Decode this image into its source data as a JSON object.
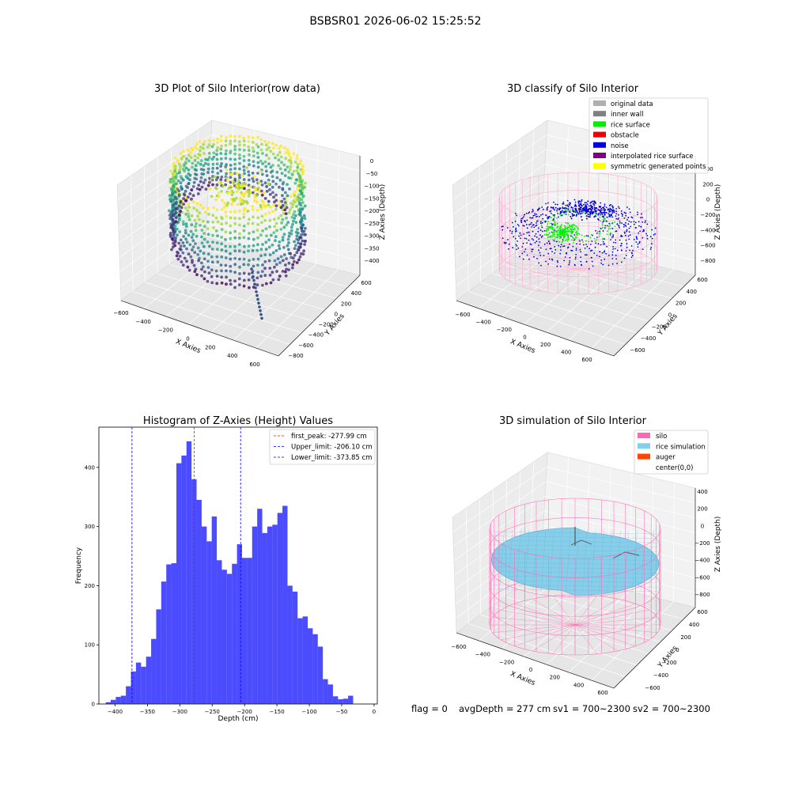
{
  "suptitle": "BSBSR01 2026-06-02 15:25:52",
  "panels": {
    "raw": {
      "title": "3D Plot of Silo Interior(row data)",
      "xlabel": "X Axies",
      "ylabel": "Y Axies",
      "zlabel": "Z Axies (Depth)",
      "xticks": [
        "−600",
        "−400",
        "−200",
        "0",
        "200",
        "400",
        "600"
      ],
      "yticks": [
        "−800",
        "−600",
        "−400",
        "−200",
        "0",
        "200",
        "400",
        "600"
      ],
      "zticks": [
        "0",
        "−50",
        "−100",
        "−150",
        "−200",
        "−250",
        "−300",
        "−350",
        "−400"
      ]
    },
    "classify": {
      "title": "3D classify of Silo Interior",
      "xlabel": "X Axies",
      "ylabel": "Y Axies",
      "zlabel": "Z Axies (Depth)",
      "xticks": [
        "−600",
        "−400",
        "−200",
        "0",
        "200",
        "400",
        "600"
      ],
      "yticks": [
        "−600",
        "−400",
        "−200",
        "0",
        "200",
        "400",
        "600"
      ],
      "zticks": [
        "400",
        "200",
        "0",
        "−200",
        "−400",
        "−600",
        "−800"
      ],
      "legend": [
        {
          "label": "original data",
          "color": "#b0b0b0"
        },
        {
          "label": "inner wall",
          "color": "#808080"
        },
        {
          "label": "rice surface",
          "color": "#00ee00"
        },
        {
          "label": "obstacle",
          "color": "#ee0000"
        },
        {
          "label": "noise",
          "color": "#0000dd"
        },
        {
          "label": "interpolated rice surface",
          "color": "#800080"
        },
        {
          "label": "symmetric generated points",
          "color": "#ffff00"
        }
      ]
    },
    "simulation": {
      "title": "3D simulation of Silo Interior",
      "xlabel": "X Axies",
      "ylabel": "Y Axies",
      "zlabel": "Z Axies (Depth)",
      "xticks": [
        "−600",
        "−400",
        "−200",
        "0",
        "200",
        "400",
        "600"
      ],
      "yticks": [
        "−600",
        "−400",
        "−200",
        "0",
        "200",
        "400",
        "600"
      ],
      "zticks": [
        "400",
        "200",
        "0",
        "−200",
        "−400",
        "−600",
        "−800"
      ],
      "legend": [
        {
          "label": "silo",
          "color": "#ff69b4"
        },
        {
          "label": "rice simulation",
          "color": "#87ceeb"
        },
        {
          "label": "auger",
          "color": "#ff4500"
        },
        {
          "label": "center(0,0)",
          "color": "#ffffff"
        }
      ]
    }
  },
  "footer": {
    "flag": "flag = 0",
    "avg": "avgDepth = 277 cm",
    "sv1": "sv1 = 700~2300",
    "sv2": "sv2 = 700~2300"
  },
  "chart_data": {
    "type": "bar",
    "title": "Histogram of Z-Axies (Height) Values",
    "xlabel": "Depth (cm)",
    "ylabel": "Frequency",
    "xlim": [
      -425,
      5
    ],
    "ylim": [
      0,
      468
    ],
    "xticks": [
      -400,
      -350,
      -300,
      -250,
      -200,
      -150,
      -100,
      -50,
      0
    ],
    "yticks": [
      0,
      100,
      200,
      300,
      400
    ],
    "bar_color": "#0000ff",
    "bin_width": 7.8,
    "bin_start": -414.5,
    "values": [
      3,
      7,
      12,
      14,
      30,
      55,
      70,
      63,
      80,
      110,
      160,
      207,
      236,
      238,
      407,
      420,
      444,
      380,
      345,
      300,
      275,
      317,
      243,
      227,
      220,
      237,
      270,
      247,
      247,
      300,
      330,
      289,
      300,
      303,
      323,
      335,
      200,
      190,
      145,
      148,
      128,
      118,
      97,
      42,
      33,
      13,
      8,
      9,
      14
    ],
    "lines": [
      {
        "label": "first_peak: -277.99 cm",
        "x": -277.99,
        "color": "#ff0000"
      },
      {
        "label": "Upper_limit: -206.10 cm",
        "x": -206.1,
        "color": "#0000ff"
      },
      {
        "label": "Lower_limit: -373.85 cm",
        "x": -373.85,
        "color": "#0000ff"
      }
    ],
    "legend_position": "top-right"
  }
}
